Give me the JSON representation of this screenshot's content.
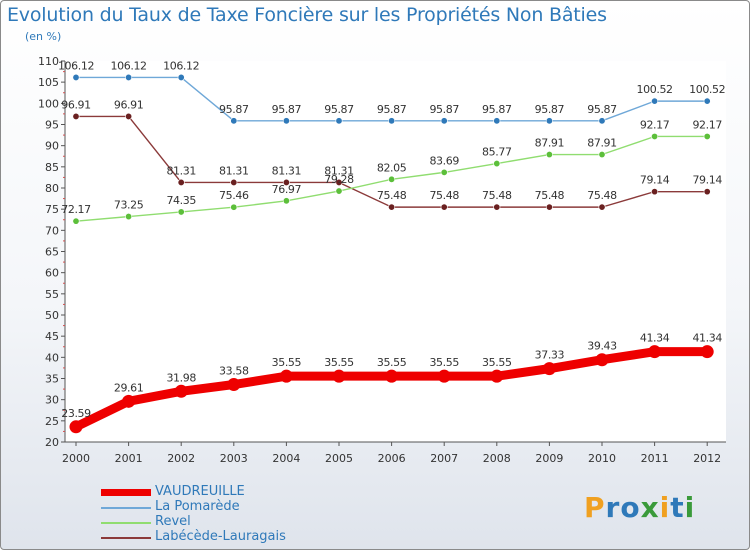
{
  "title": "Evolution du Taux de Taxe Foncière sur les Propriétés Non Bâties",
  "unit_label": "(en %)",
  "logo": {
    "text": "Proxiti",
    "letters": [
      "P",
      "r",
      "o",
      "x",
      "i",
      "t",
      "i"
    ],
    "colors": [
      "#f0a020",
      "#2f79b9",
      "#2f79b9",
      "#3a9a3a",
      "#f0a020",
      "#2f79b9",
      "#3a9a3a"
    ]
  },
  "chart_data": {
    "type": "line",
    "x": [
      "2000",
      "2001",
      "2002",
      "2003",
      "2004",
      "2005",
      "2006",
      "2007",
      "2008",
      "2009",
      "2010",
      "2011",
      "2012"
    ],
    "ylim": [
      20,
      110
    ],
    "yticks": [
      "20",
      "25",
      "30",
      "35",
      "40",
      "45",
      "50",
      "55",
      "60",
      "65",
      "70",
      "75",
      "80",
      "85",
      "90",
      "95",
      "100",
      "105",
      "110"
    ],
    "grid": false,
    "series": [
      {
        "name": "VAUDREUILLE",
        "color": "#ee0000",
        "marker": "#ee0000",
        "bold": true,
        "values": [
          23.59,
          29.61,
          31.98,
          33.58,
          35.55,
          35.55,
          35.55,
          35.55,
          35.55,
          37.33,
          39.43,
          41.34,
          41.34
        ],
        "labels": [
          "23.59",
          "29.61",
          "31.98",
          "33.58",
          "35.55",
          "35.55",
          "35.55",
          "35.55",
          "35.55",
          "37.33",
          "39.43",
          "41.34",
          "41.34"
        ]
      },
      {
        "name": "La Pomarède",
        "color": "#6fa8d8",
        "marker": "#2f79b9",
        "bold": false,
        "values": [
          106.12,
          106.12,
          106.12,
          95.87,
          95.87,
          95.87,
          95.87,
          95.87,
          95.87,
          95.87,
          95.87,
          100.52,
          100.52
        ],
        "labels": [
          "106.12",
          "106.12",
          "106.12",
          "95.87",
          "95.87",
          "95.87",
          "95.87",
          "95.87",
          "95.87",
          "95.87",
          "95.87",
          "100.52",
          "100.52"
        ]
      },
      {
        "name": "Revel",
        "color": "#90dd70",
        "marker": "#5cbf3a",
        "bold": false,
        "values": [
          72.17,
          73.25,
          74.35,
          75.46,
          76.97,
          79.28,
          82.05,
          83.69,
          85.77,
          87.91,
          87.91,
          92.17,
          92.17
        ],
        "labels": [
          "72.17",
          "73.25",
          "74.35",
          "75.46",
          "76.97",
          "79.28",
          "82.05",
          "83.69",
          "85.77",
          "87.91",
          "87.91",
          "92.17",
          "92.17"
        ]
      },
      {
        "name": "Labécède-Lauragais",
        "color": "#8b3a3a",
        "marker": "#6a2020",
        "bold": false,
        "values": [
          96.91,
          96.91,
          81.31,
          81.31,
          81.31,
          81.31,
          75.48,
          75.48,
          75.48,
          75.48,
          75.48,
          79.14,
          79.14
        ],
        "labels": [
          "96.91",
          "96.91",
          "81.31",
          "81.31",
          "81.31",
          "81.31",
          "75.48",
          "75.48",
          "75.48",
          "75.48",
          "75.48",
          "79.14",
          "79.14"
        ]
      }
    ]
  }
}
